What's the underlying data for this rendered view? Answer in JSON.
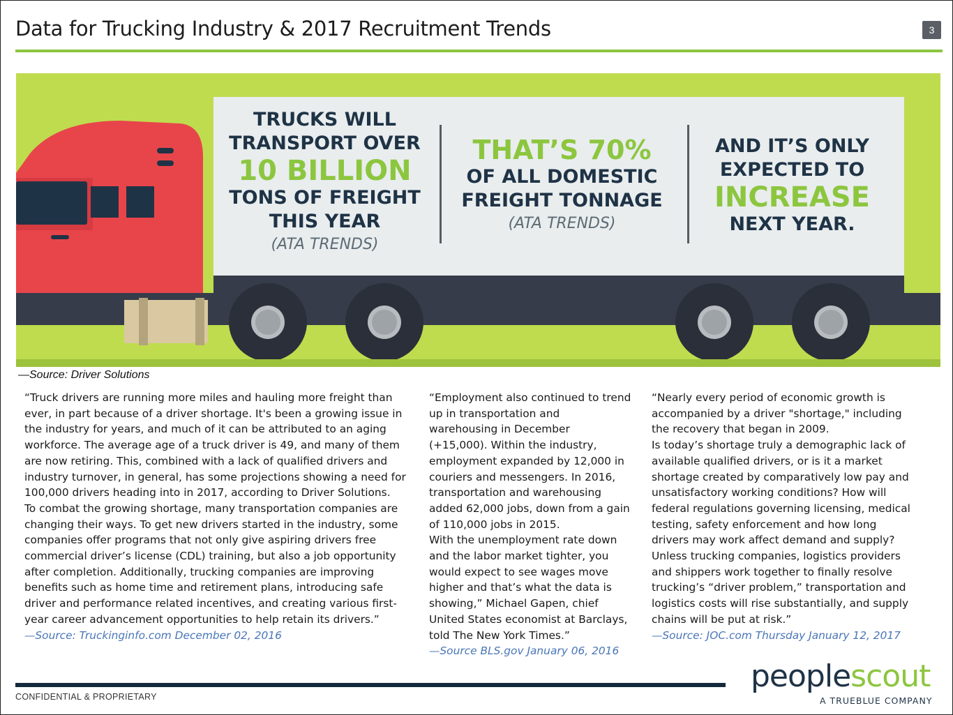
{
  "header": {
    "title": "Data for Trucking Industry & 2017 Recruitment Trends",
    "page_number": "3"
  },
  "infographic": {
    "stat1": {
      "line1": "TRUCKS WILL",
      "line2": "TRANSPORT OVER",
      "big": "10 BILLION",
      "line3": "TONS OF FREIGHT",
      "line4": "THIS YEAR",
      "source": "(ATA TRENDS)"
    },
    "stat2": {
      "big": "THAT’S 70%",
      "line1": "OF ALL DOMESTIC",
      "line2": "FREIGHT TONNAGE",
      "source": "(ATA TRENDS)"
    },
    "stat3": {
      "line1": "AND IT’S ONLY",
      "line2": "EXPECTED TO",
      "big": "INCREASE",
      "line3": "NEXT YEAR."
    },
    "colors": {
      "background": "#bfdc4e",
      "cab_red": "#e8454b",
      "accent_green": "#8cc63f",
      "navy": "#1f3346"
    }
  },
  "source_caption": "—Source: Driver Solutions",
  "columns": [
    {
      "body": "“Truck drivers are running more miles and hauling more freight than ever, in part because of a driver shortage. It's been a growing issue in the industry for years, and much of it can be attributed to an aging workforce. The average age of a truck driver is 49, and many of them are now retiring. This, combined with a lack of qualified drivers and industry turnover, in general, has some projections showing a need for 100,000 drivers heading into in 2017, according to Driver Solutions.\nTo combat the growing shortage, many transportation companies are changing their ways. To get new drivers started in the industry, some companies offer programs that not only give aspiring drivers free commercial driver’s license (CDL) training, but also a job opportunity after completion. Additionally, trucking companies are improving benefits such as home time and retirement plans, introducing safe driver and performance related incentives, and creating various first-year career advancement opportunities to help retain its drivers.”",
      "cite": "—Source: Truckinginfo.com December 02, 2016"
    },
    {
      "body": "“Employment also continued to trend up in transportation and warehousing in December (+15,000). Within the industry, employment expanded by 12,000 in couriers and messengers.  In 2016, transportation and warehousing added 62,000 jobs, down from a gain of 110,000 jobs in 2015.\nWith the unemployment rate down and the labor market tighter, you would expect to see wages move higher and that’s what the data is showing,” Michael Gapen, chief United States economist at Barclays, told The New York Times.”",
      "cite": "—Source BLS.gov  January 06, 2016"
    },
    {
      "body": "“Nearly every period of economic growth is accompanied by a driver \"shortage,\" including the recovery that began in 2009.\nIs today’s shortage truly a demographic lack of available qualified drivers, or is it a market shortage created by comparatively low pay and unsatisfactory working conditions? How will federal regulations governing licensing, medical testing, safety enforcement and how long drivers may work affect demand and supply? Unless trucking companies, logistics providers and shippers work together to finally resolve trucking’s “driver problem,” transportation and logistics costs will rise substantially, and supply chains will be put at risk.”",
      "cite": "—Source: JOC.com Thursday January 12, 2017"
    }
  ],
  "footer": {
    "confidential": "CONFIDENTIAL & PROPRIETARY",
    "logo_people": "people",
    "logo_scout": "scout",
    "logo_tagline": "A TRUEBLUE COMPANY"
  }
}
